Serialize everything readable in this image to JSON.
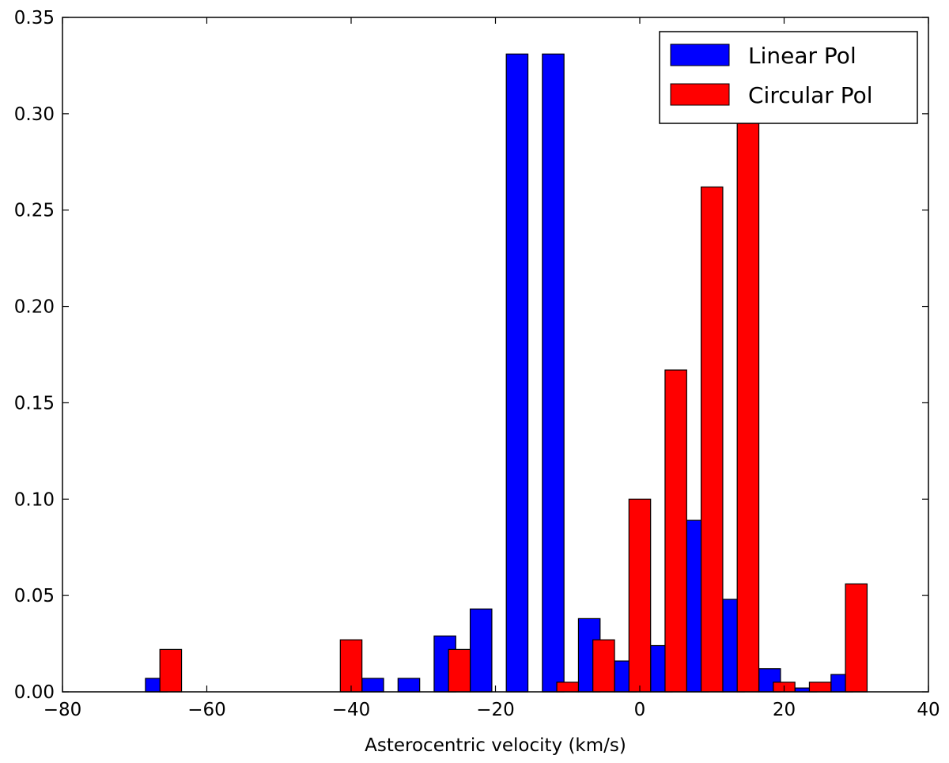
{
  "chart_data": {
    "type": "bar",
    "title": "",
    "xlabel": "Asterocentric velocity (km/s)",
    "ylabel": "",
    "xlim": [
      -80,
      40
    ],
    "ylim": [
      0,
      0.35
    ],
    "grid": false,
    "legend_placement": "top-right",
    "x_ticks": [
      -80,
      -60,
      -40,
      -20,
      0,
      20,
      40
    ],
    "x_tick_labels": [
      "−80",
      "−60",
      "−40",
      "−20",
      "0",
      "20",
      "40"
    ],
    "y_ticks": [
      0,
      0.05,
      0.1,
      0.15,
      0.2,
      0.25,
      0.3,
      0.35
    ],
    "y_tick_labels": [
      "0.00",
      "0.05",
      "0.10",
      "0.15",
      "0.20",
      "0.25",
      "0.30",
      "0.35"
    ],
    "bar_width": 3,
    "series": [
      {
        "name": "Linear Pol",
        "color": "#0000ff",
        "x": [
          -67,
          -62,
          -57,
          -52,
          -47,
          -42,
          -37,
          -32,
          -27,
          -22,
          -17,
          -12,
          -7,
          -2,
          3,
          8,
          13,
          18,
          23,
          28
        ],
        "values": [
          0.007,
          0,
          0,
          0,
          0,
          0,
          0.007,
          0.007,
          0.029,
          0.043,
          0.331,
          0.331,
          0.038,
          0.016,
          0.024,
          0.089,
          0.048,
          0.012,
          0.002,
          0.009
        ]
      },
      {
        "name": "Circular Pol",
        "color": "#ff0000",
        "x": [
          -65,
          -60,
          -55,
          -50,
          -45,
          -40,
          -35,
          -30,
          -25,
          -20,
          -15,
          -10,
          -5,
          0,
          5,
          10,
          15,
          20,
          25,
          30
        ],
        "values": [
          0.022,
          0,
          0,
          0,
          0,
          0.027,
          0,
          0,
          0.022,
          0,
          0,
          0.005,
          0.027,
          0.1,
          0.167,
          0.262,
          0.3,
          0.005,
          0.005,
          0.056
        ]
      }
    ]
  }
}
